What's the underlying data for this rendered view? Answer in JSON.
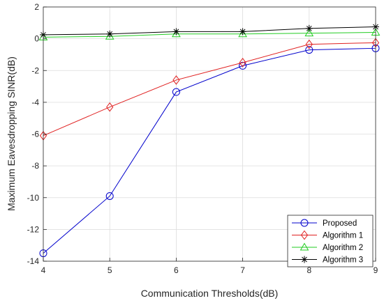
{
  "chart_data": {
    "type": "line",
    "title": "",
    "xlabel": "Communication Thresholds(dB)",
    "ylabel": "Maximum Eavesdropping SINR(dB)",
    "xlim": [
      4,
      9
    ],
    "ylim": [
      -14,
      2
    ],
    "xticks": [
      4,
      5,
      6,
      7,
      8,
      9
    ],
    "yticks": [
      -14,
      -12,
      -10,
      -8,
      -6,
      -4,
      -2,
      0,
      2
    ],
    "grid": true,
    "legend_position": "bottom-right",
    "x": [
      4,
      5,
      6,
      7,
      8,
      9
    ],
    "series": [
      {
        "name": "Proposed",
        "values": [
          -13.5,
          -9.9,
          -3.35,
          -1.7,
          -0.7,
          -0.6
        ],
        "color": "#0000cc",
        "marker": "circle"
      },
      {
        "name": "Algorithm 1",
        "values": [
          -6.1,
          -4.3,
          -2.6,
          -1.5,
          -0.35,
          -0.25
        ],
        "color": "#e02020",
        "marker": "diamond"
      },
      {
        "name": "Algorithm 2",
        "values": [
          0.1,
          0.15,
          0.3,
          0.3,
          0.35,
          0.4
        ],
        "color": "#22cc22",
        "marker": "triangle"
      },
      {
        "name": "Algorithm 3",
        "values": [
          0.25,
          0.3,
          0.45,
          0.45,
          0.65,
          0.75
        ],
        "color": "#000000",
        "marker": "asterisk"
      }
    ]
  }
}
